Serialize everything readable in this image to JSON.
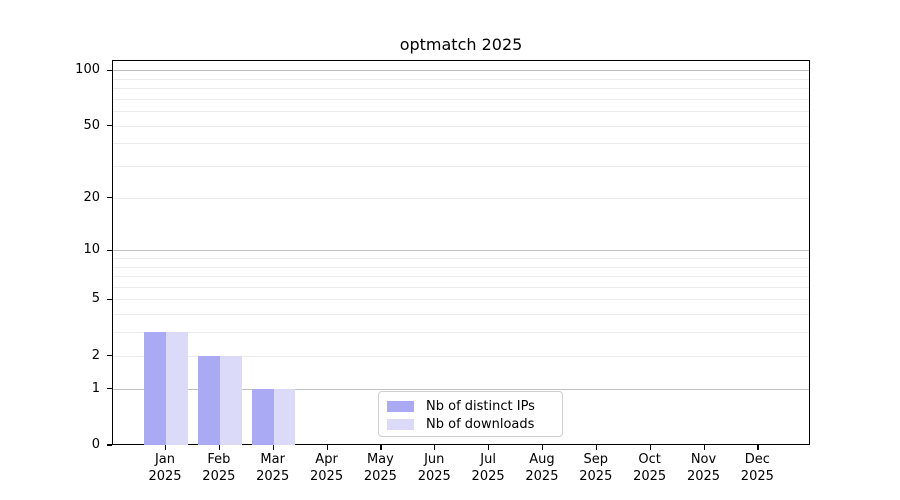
{
  "chart_data": {
    "type": "bar",
    "title": "optmatch 2025",
    "categories": [
      "Jan",
      "Feb",
      "Mar",
      "Apr",
      "May",
      "Jun",
      "Jul",
      "Aug",
      "Sep",
      "Oct",
      "Nov",
      "Dec"
    ],
    "year_label": "2025",
    "series": [
      {
        "name": "Nb of distinct IPs",
        "color": "#a9a9f4",
        "values": [
          3,
          2,
          1,
          0,
          0,
          0,
          0,
          0,
          0,
          0,
          0,
          0
        ]
      },
      {
        "name": "Nb of downloads",
        "color": "#dbdbf9",
        "values": [
          3,
          2,
          1,
          0,
          0,
          0,
          0,
          0,
          0,
          0,
          0,
          0
        ]
      }
    ],
    "y_axis": {
      "scale": "log10(1+y)",
      "tick_values": [
        0,
        1,
        2,
        5,
        10,
        20,
        50,
        100
      ],
      "major_gridlines": [
        1,
        10,
        100
      ],
      "minor_gridlines": [
        2,
        3,
        4,
        5,
        6,
        7,
        8,
        9,
        20,
        30,
        40,
        50,
        60,
        70,
        80,
        90
      ],
      "ylim": [
        0,
        114
      ]
    },
    "legend": {
      "position": "lower center",
      "items": [
        {
          "label": "Nb of distinct IPs",
          "color": "#a9a9f4"
        },
        {
          "label": "Nb of downloads",
          "color": "#dbdbf9"
        }
      ]
    },
    "colors": {
      "major_grid": "#c0c0c0",
      "minor_grid": "#ebebeb",
      "axis": "#000000",
      "background": "#ffffff"
    }
  }
}
